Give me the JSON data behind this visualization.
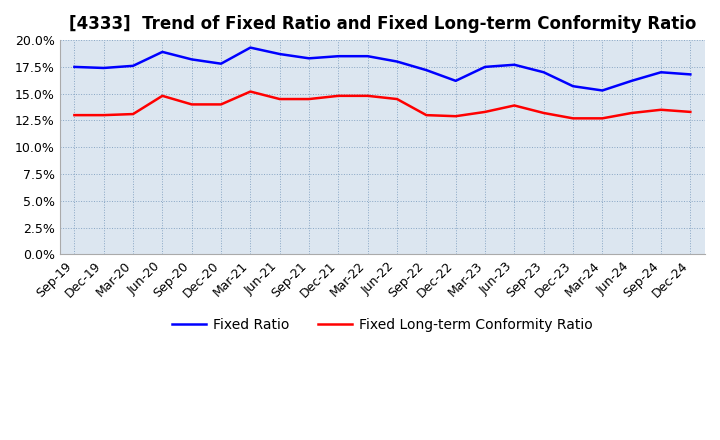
{
  "title": "[4333]  Trend of Fixed Ratio and Fixed Long-term Conformity Ratio",
  "x_labels": [
    "Sep-19",
    "Dec-19",
    "Mar-20",
    "Jun-20",
    "Sep-20",
    "Dec-20",
    "Mar-21",
    "Jun-21",
    "Sep-21",
    "Dec-21",
    "Mar-22",
    "Jun-22",
    "Sep-22",
    "Dec-22",
    "Mar-23",
    "Jun-23",
    "Sep-23",
    "Dec-23",
    "Mar-24",
    "Jun-24",
    "Sep-24",
    "Dec-24"
  ],
  "fixed_ratio": [
    17.5,
    17.4,
    17.6,
    18.9,
    18.2,
    17.8,
    19.3,
    18.7,
    18.3,
    18.5,
    18.5,
    18.0,
    17.2,
    16.2,
    17.5,
    17.7,
    17.0,
    15.7,
    15.3,
    16.2,
    17.0,
    16.8
  ],
  "fixed_lt_ratio": [
    13.0,
    13.0,
    13.1,
    14.8,
    14.0,
    14.0,
    15.2,
    14.5,
    14.5,
    14.8,
    14.8,
    14.5,
    13.0,
    12.9,
    13.3,
    13.9,
    13.2,
    12.7,
    12.7,
    13.2,
    13.5,
    13.3
  ],
  "fixed_ratio_color": "#0000ff",
  "fixed_lt_ratio_color": "#ff0000",
  "ylim": [
    0.0,
    20.0
  ],
  "yticks": [
    0.0,
    2.5,
    5.0,
    7.5,
    10.0,
    12.5,
    15.0,
    17.5,
    20.0
  ],
  "background_color": "#dce6f0",
  "fig_background_color": "#ffffff",
  "grid_color": "#7f9fbf",
  "title_fontsize": 12,
  "legend_fontsize": 10,
  "tick_fontsize": 9,
  "line_width": 1.8
}
